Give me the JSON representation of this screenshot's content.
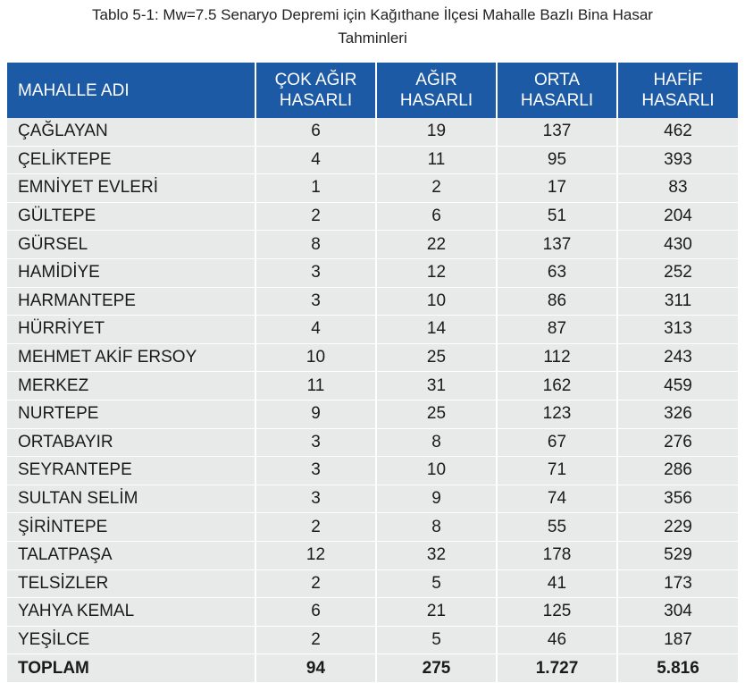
{
  "caption": {
    "line1": "Tablo 5-1: Mw=7.5 Senaryo Depremi için Kağıthane İlçesi Mahalle Bazlı Bina Hasar",
    "line2": "Tahminleri"
  },
  "table": {
    "headers": [
      [
        "MAHALLE ADI"
      ],
      [
        "ÇOK AĞIR",
        "HASARLI"
      ],
      [
        "AĞIR",
        "HASARLI"
      ],
      [
        "ORTA",
        "HASARLI"
      ],
      [
        "HAFİF",
        "HASARLI"
      ]
    ],
    "rows": [
      [
        "ÇAĞLAYAN",
        "6",
        "19",
        "137",
        "462"
      ],
      [
        "ÇELİKTEPE",
        "4",
        "11",
        "95",
        "393"
      ],
      [
        "EMNİYET EVLERİ",
        "1",
        "2",
        "17",
        "83"
      ],
      [
        "GÜLTEPE",
        "2",
        "6",
        "51",
        "204"
      ],
      [
        "GÜRSEL",
        "8",
        "22",
        "137",
        "430"
      ],
      [
        "HAMİDİYE",
        "3",
        "12",
        "63",
        "252"
      ],
      [
        "HARMANTEPE",
        "3",
        "10",
        "86",
        "311"
      ],
      [
        "HÜRRİYET",
        "4",
        "14",
        "87",
        "313"
      ],
      [
        "MEHMET AKİF ERSOY",
        "10",
        "25",
        "112",
        "243"
      ],
      [
        "MERKEZ",
        "11",
        "31",
        "162",
        "459"
      ],
      [
        "NURTEPE",
        "9",
        "25",
        "123",
        "326"
      ],
      [
        "ORTABAYIR",
        "3",
        "8",
        "67",
        "276"
      ],
      [
        "SEYRANTEPE",
        "3",
        "10",
        "71",
        "286"
      ],
      [
        "SULTAN SELİM",
        "3",
        "9",
        "74",
        "356"
      ],
      [
        "ŞİRİNTEPE",
        "2",
        "8",
        "55",
        "229"
      ],
      [
        "TALATPAŞA",
        "12",
        "32",
        "178",
        "529"
      ],
      [
        "TELSİZLER",
        "2",
        "5",
        "41",
        "173"
      ],
      [
        "YAHYA KEMAL",
        "6",
        "21",
        "125",
        "304"
      ],
      [
        "YEŞİLCE",
        "2",
        "5",
        "46",
        "187"
      ]
    ],
    "total": [
      "TOPLAM",
      "94",
      "275",
      "1.727",
      "5.816"
    ]
  },
  "colors": {
    "header_bg": "#1d5aa6",
    "row_bg": "#e8eaea"
  }
}
